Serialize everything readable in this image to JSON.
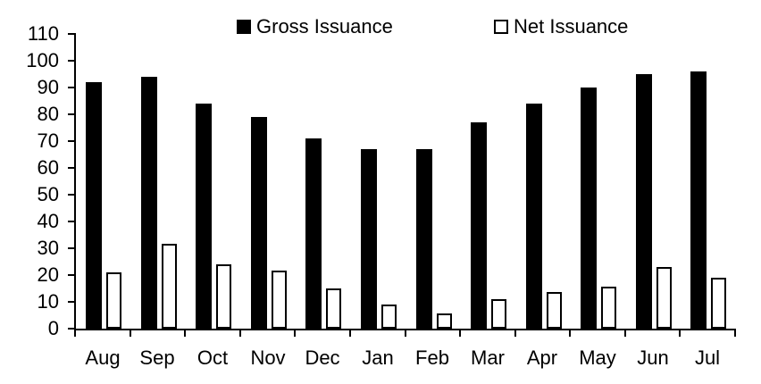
{
  "chart_data": {
    "type": "bar",
    "title": "",
    "xlabel": "",
    "ylabel": "",
    "categories": [
      "Aug",
      "Sep",
      "Oct",
      "Nov",
      "Dec",
      "Jan",
      "Feb",
      "Mar",
      "Apr",
      "May",
      "Jun",
      "Jul"
    ],
    "series": [
      {
        "name": "Gross Issuance",
        "values": [
          92,
          94,
          84,
          79,
          71,
          67,
          67,
          77,
          84,
          90,
          95,
          96
        ],
        "fill": "#000000",
        "border": "#000000"
      },
      {
        "name": "Net Issuance",
        "values": [
          21,
          31.5,
          24,
          21.5,
          15,
          9,
          5.5,
          11,
          13.5,
          15.5,
          23,
          19
        ],
        "fill": "#ffffff",
        "border": "#000000"
      }
    ],
    "ylim": [
      0,
      110
    ],
    "ytick_step": 10,
    "grid": false,
    "legend_position": "top"
  },
  "colors": {
    "background": "#ffffff",
    "axis": "#000000",
    "text": "#000000"
  }
}
